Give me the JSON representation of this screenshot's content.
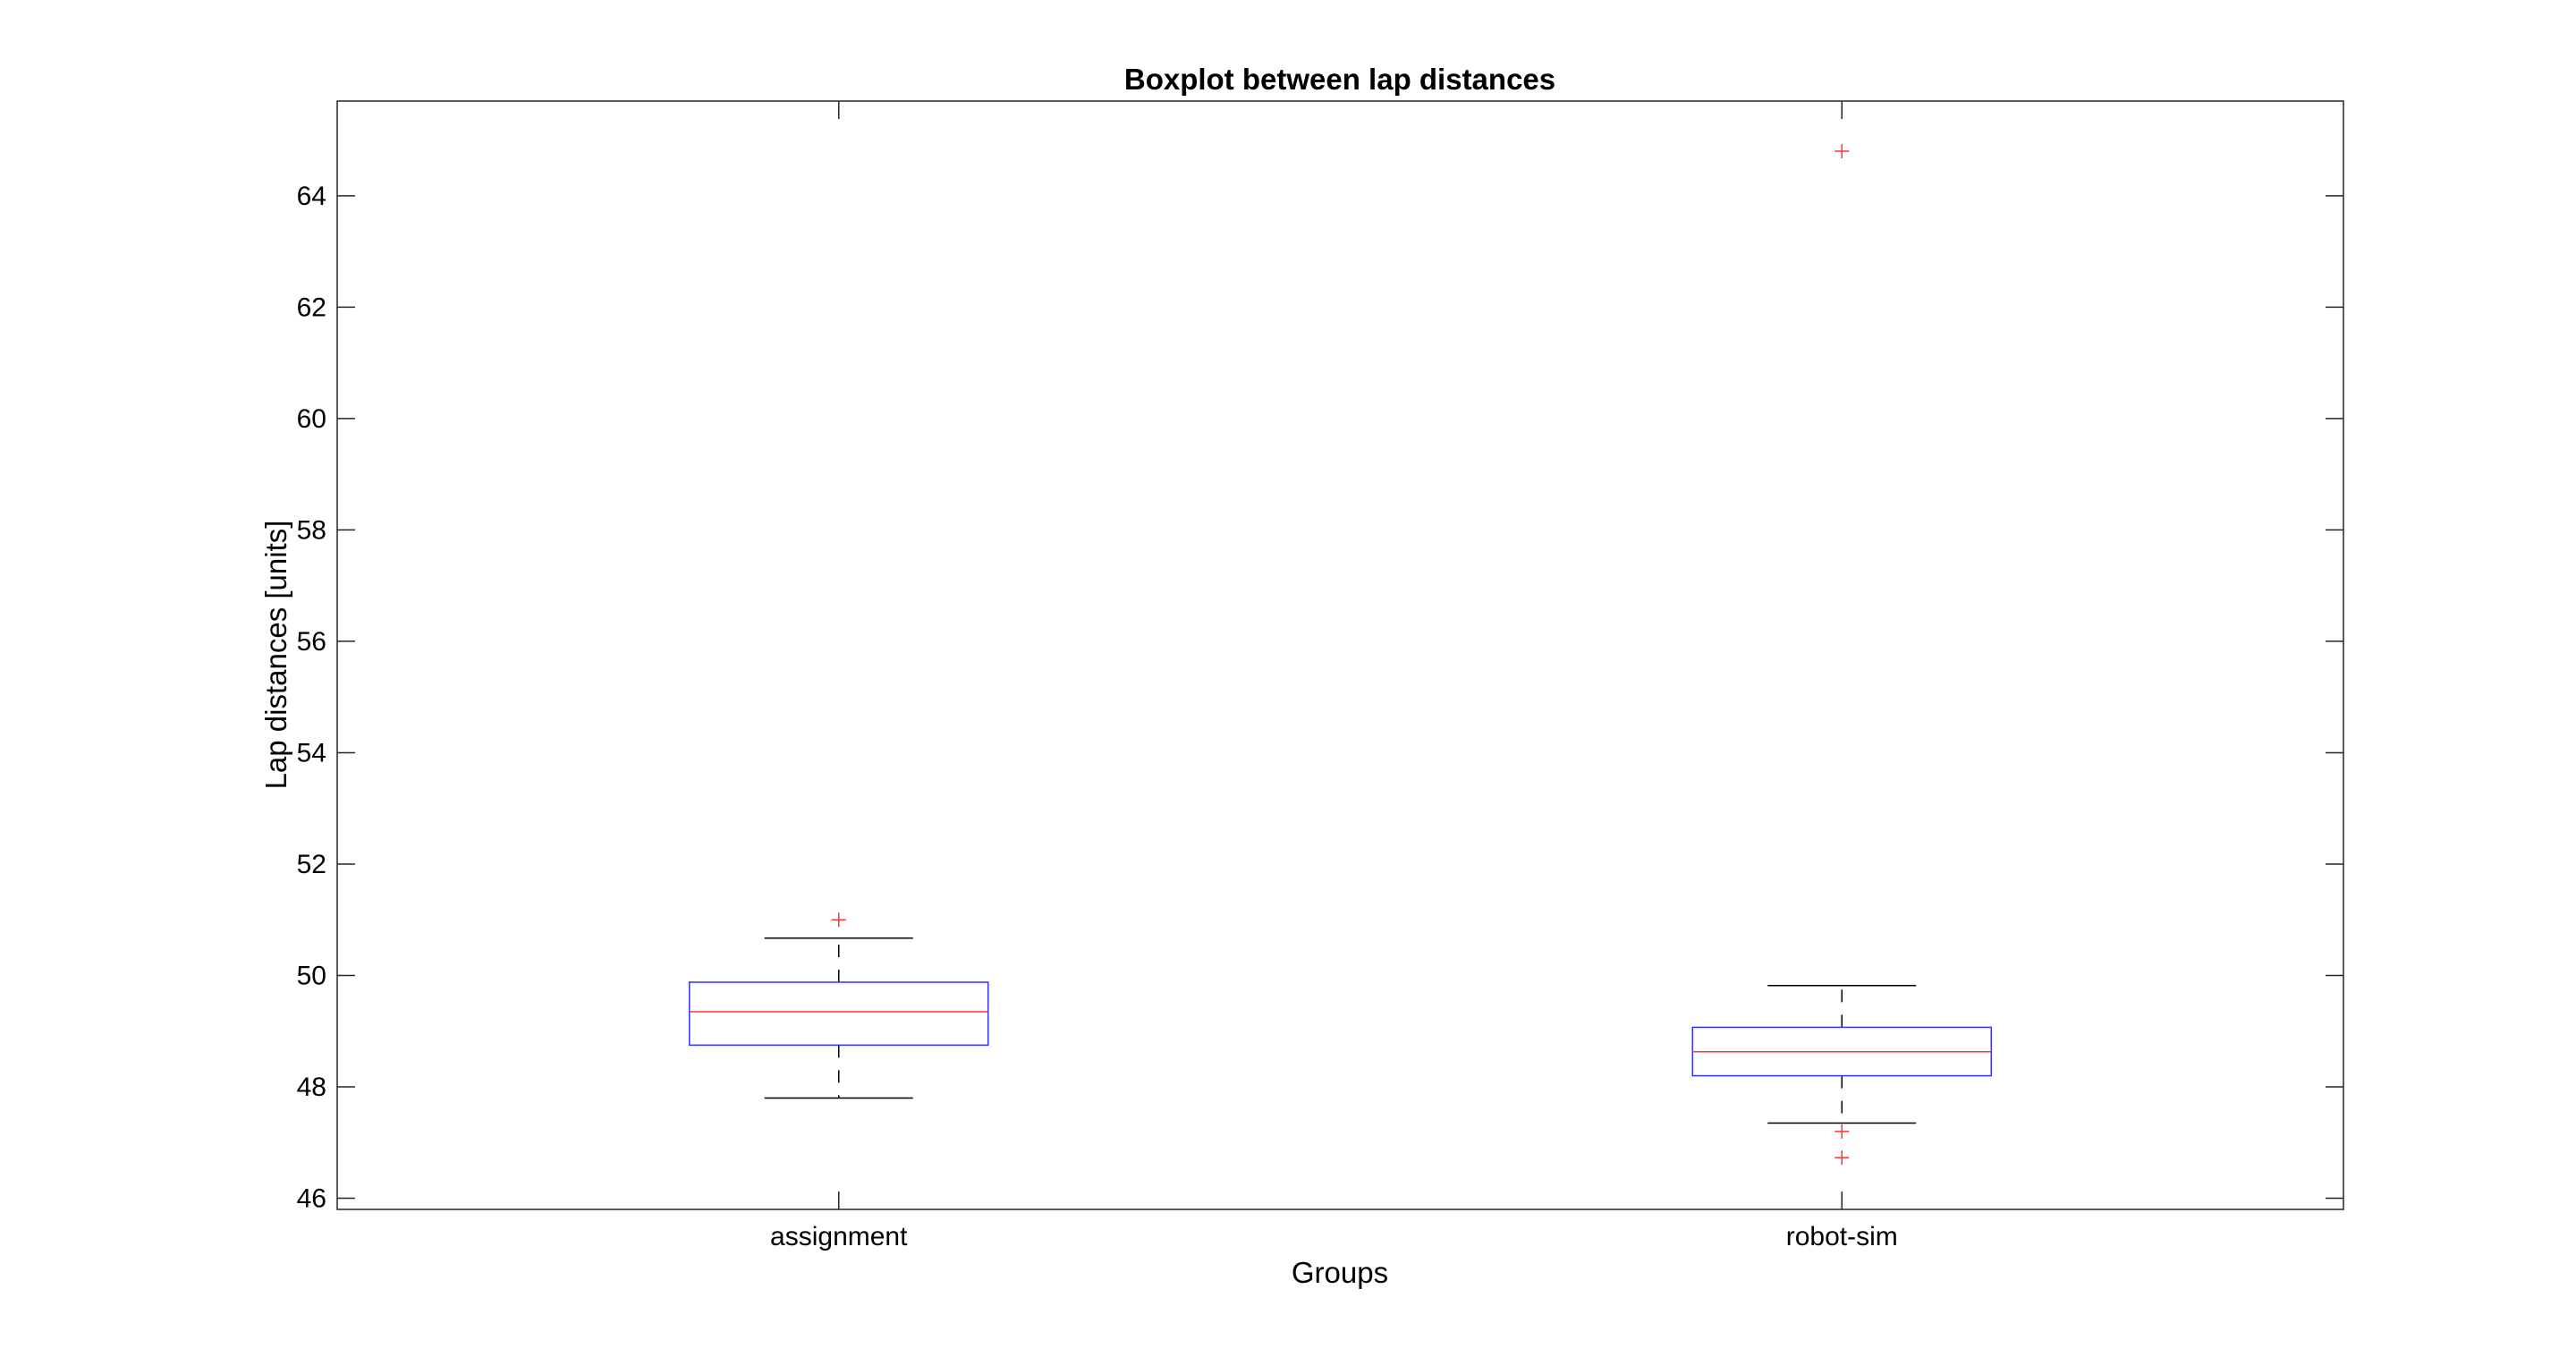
{
  "chart_data": {
    "type": "boxplot",
    "title": "Boxplot between lap distances",
    "xlabel": "Groups",
    "ylabel": "Lap distances [units]",
    "ylim": [
      45.8,
      65.7
    ],
    "yticks": [
      46,
      48,
      50,
      52,
      54,
      56,
      58,
      60,
      62,
      64
    ],
    "grid": false,
    "categories": [
      "assignment",
      "robot-sim"
    ],
    "boxes": [
      {
        "category": "assignment",
        "whisker_low": 47.8,
        "q1": 48.75,
        "median": 49.35,
        "q3": 49.88,
        "whisker_high": 50.67,
        "outliers": [
          51.0
        ]
      },
      {
        "category": "robot-sim",
        "whisker_low": 47.35,
        "q1": 48.2,
        "median": 48.63,
        "q3": 49.07,
        "whisker_high": 49.82,
        "outliers": [
          64.8,
          47.2,
          46.73
        ]
      }
    ],
    "colors": {
      "box": "#3333ff",
      "median": "#ff3333",
      "outlier": "#ff3333",
      "whisker": "#000000",
      "axes": "#262626"
    }
  }
}
